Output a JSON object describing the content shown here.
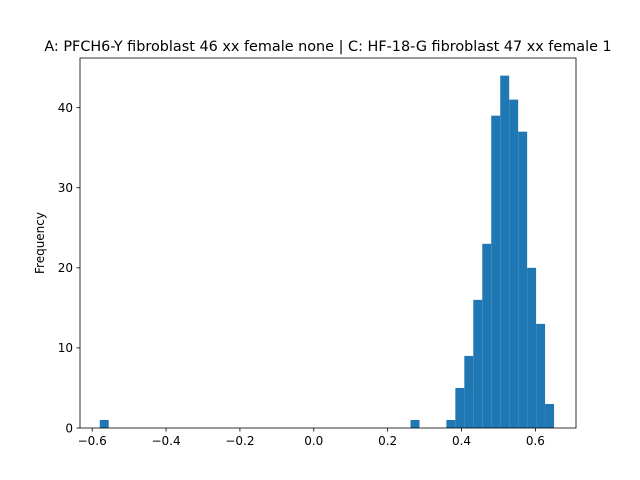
{
  "chart_data": {
    "type": "bar",
    "title": "A: PFCH6-Y fibroblast 46 xx female none | C: HF-18-G fibroblast 47 xx female 1",
    "xlabel": "",
    "ylabel": "Frequency",
    "xlim": [
      -0.633,
      0.71
    ],
    "ylim": [
      0,
      46.2
    ],
    "x_ticks": [
      -0.6,
      -0.4,
      -0.2,
      0.0,
      0.2,
      0.4,
      0.6
    ],
    "x_tick_labels": [
      "−0.6",
      "−0.4",
      "−0.2",
      "0.0",
      "0.2",
      "0.4",
      "0.6"
    ],
    "y_ticks": [
      0,
      10,
      20,
      30,
      40
    ],
    "y_tick_labels": [
      "0",
      "10",
      "20",
      "30",
      "40"
    ],
    "bar_color": "#1f77b4",
    "bins": [
      {
        "x0": -0.5795,
        "x1": -0.5552,
        "count": 1
      },
      {
        "x0": 0.262,
        "x1": 0.2863,
        "count": 1
      },
      {
        "x0": 0.359,
        "x1": 0.3833,
        "count": 1
      },
      {
        "x0": 0.3833,
        "x1": 0.4076,
        "count": 5
      },
      {
        "x0": 0.4076,
        "x1": 0.4319,
        "count": 9
      },
      {
        "x0": 0.4319,
        "x1": 0.4562,
        "count": 16
      },
      {
        "x0": 0.4562,
        "x1": 0.4805,
        "count": 23
      },
      {
        "x0": 0.4805,
        "x1": 0.5048,
        "count": 39
      },
      {
        "x0": 0.5048,
        "x1": 0.5291,
        "count": 44
      },
      {
        "x0": 0.5291,
        "x1": 0.5534,
        "count": 41
      },
      {
        "x0": 0.5534,
        "x1": 0.5777,
        "count": 37
      },
      {
        "x0": 0.5777,
        "x1": 0.602,
        "count": 20
      },
      {
        "x0": 0.602,
        "x1": 0.6263,
        "count": 13
      },
      {
        "x0": 0.6263,
        "x1": 0.6506,
        "count": 3
      }
    ],
    "grid": false,
    "legend": "none"
  }
}
